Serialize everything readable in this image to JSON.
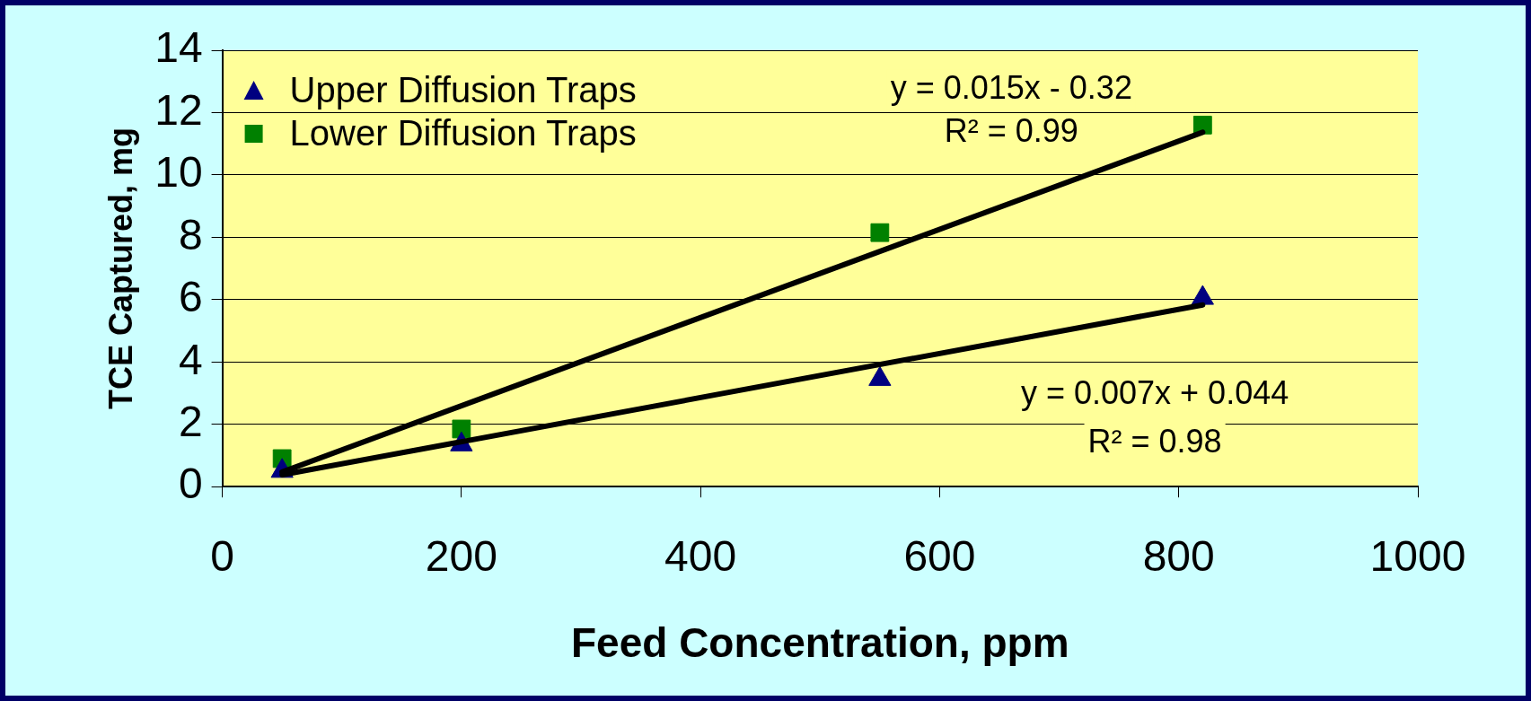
{
  "chart_data": {
    "type": "scatter",
    "xlabel": "Feed Concentration, ppm",
    "ylabel": "TCE Captured, mg",
    "xlim": [
      0,
      1000
    ],
    "xticks": [
      0,
      200,
      400,
      600,
      800,
      1000
    ],
    "ylim": [
      0,
      14
    ],
    "yticks": [
      0,
      2,
      4,
      6,
      8,
      10,
      12,
      14
    ],
    "grid": "y",
    "legend": "top left",
    "series": [
      {
        "name": "Upper Diffusion Traps",
        "color": "#000080",
        "marker": "triangle",
        "x": [
          50,
          200,
          550,
          820
        ],
        "values": [
          0.5,
          1.35,
          3.45,
          6.05
        ]
      },
      {
        "name": "Lower Diffusion Traps",
        "color": "#008000",
        "marker": "square",
        "x": [
          50,
          200,
          550,
          820
        ],
        "values": [
          0.9,
          1.85,
          8.15,
          11.6
        ]
      },
      {
        "type": "line",
        "color": "#000000",
        "marker": "none",
        "x": [
          50,
          820
        ],
        "values": [
          0.38,
          5.83
        ]
      },
      {
        "type": "line",
        "color": "#000000",
        "marker": "none",
        "x": [
          50,
          820
        ],
        "values": [
          0.47,
          11.37
        ]
      }
    ],
    "annotations": [
      "y = 0.015x - 0.32",
      "R² = 0.99",
      "y = 0.007x + 0.044",
      "R² = 0.98"
    ]
  }
}
